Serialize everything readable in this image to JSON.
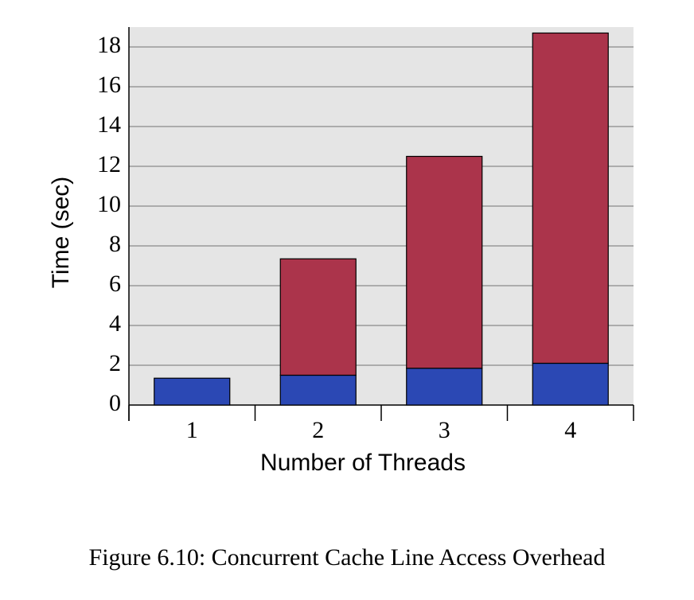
{
  "chart_data": {
    "type": "stacked-bar",
    "caption": "Figure 6.10: Concurrent Cache Line Access Overhead",
    "x_label": "Number of Threads",
    "y_label": "Time (sec)",
    "categories": [
      "1",
      "2",
      "3",
      "4"
    ],
    "series": [
      {
        "color": "#2b48b4",
        "values": [
          1.35,
          1.5,
          1.85,
          2.1
        ]
      },
      {
        "color": "#ab344b",
        "values": [
          0,
          5.85,
          10.65,
          16.6
        ]
      }
    ],
    "ylim": [
      0,
      19
    ],
    "yticks": [
      0,
      2,
      4,
      6,
      8,
      10,
      12,
      14,
      16,
      18
    ],
    "grid": true
  }
}
